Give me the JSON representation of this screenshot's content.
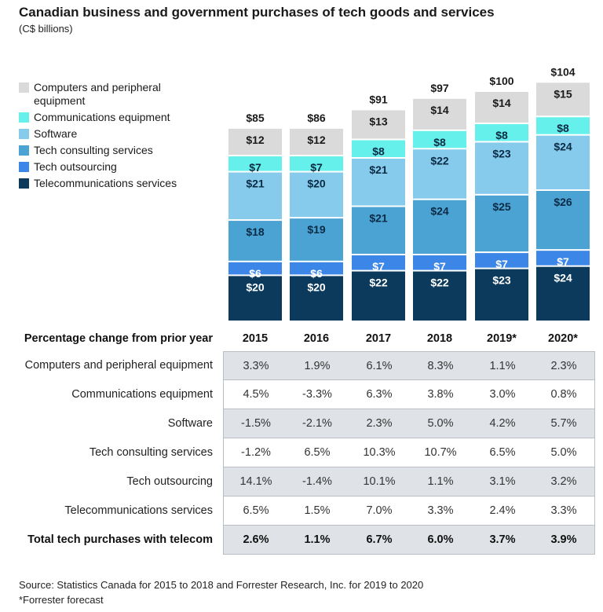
{
  "chart_data": {
    "type": "bar",
    "stacked": true,
    "title": "Canadian business and government purchases of tech goods and services",
    "subtitle": "(C$ billions)",
    "categories": [
      "2015",
      "2016",
      "2017",
      "2018",
      "2019*",
      "2020*"
    ],
    "totals": [
      "$85",
      "$86",
      "$91",
      "$97",
      "$100",
      "$104"
    ],
    "total_values": [
      85,
      86,
      91,
      97,
      100,
      104
    ],
    "series": [
      {
        "name": "Telecommunications services",
        "color": "#0b3a5c",
        "label_color": "#ffffff",
        "values": [
          20,
          20,
          22,
          22,
          23,
          24
        ]
      },
      {
        "name": "Tech outsourcing",
        "color": "#3b86e6",
        "label_color": "#ffffff",
        "values": [
          6,
          6,
          7,
          7,
          7,
          7
        ]
      },
      {
        "name": "Tech consulting services",
        "color": "#4ba3d4",
        "label_color": "#0b2b45",
        "values": [
          18,
          19,
          21,
          24,
          25,
          26
        ]
      },
      {
        "name": "Software",
        "color": "#86cbec",
        "label_color": "#0b2b45",
        "values": [
          21,
          20,
          21,
          22,
          23,
          24
        ]
      },
      {
        "name": "Communications equipment",
        "color": "#66f0ec",
        "label_color": "#0b2b45",
        "values": [
          7,
          7,
          8,
          8,
          8,
          8
        ]
      },
      {
        "name": "Computers and peripheral equipment",
        "color": "#dadada",
        "label_color": "#1a1a1a",
        "values": [
          12,
          12,
          13,
          14,
          14,
          15
        ]
      }
    ],
    "legend_order": [
      "Computers and peripheral equipment",
      "Communications equipment",
      "Software",
      "Tech consulting services",
      "Tech outsourcing",
      "Telecommunications services"
    ],
    "legend_placement": "top-left",
    "value_prefix": "$",
    "grid": false
  },
  "table": {
    "header": "Percentage change from prior year",
    "columns": [
      "2015",
      "2016",
      "2017",
      "2018",
      "2019*",
      "2020*"
    ],
    "rows": [
      {
        "label": "Computers and peripheral equipment",
        "values": [
          "3.3%",
          "1.9%",
          "6.1%",
          "8.3%",
          "1.1%",
          "2.3%"
        ]
      },
      {
        "label": "Communications equipment",
        "values": [
          "4.5%",
          "-3.3%",
          "6.3%",
          "3.8%",
          "3.0%",
          "0.8%"
        ]
      },
      {
        "label": "Software",
        "values": [
          "-1.5%",
          "-2.1%",
          "2.3%",
          "5.0%",
          "4.2%",
          "5.7%"
        ]
      },
      {
        "label": "Tech consulting services",
        "values": [
          "-1.2%",
          "6.5%",
          "10.3%",
          "10.7%",
          "6.5%",
          "5.0%"
        ]
      },
      {
        "label": "Tech outsourcing",
        "values": [
          "14.1%",
          "-1.4%",
          "10.1%",
          "1.1%",
          "3.1%",
          "3.2%"
        ]
      },
      {
        "label": "Telecommunications services",
        "values": [
          "6.5%",
          "1.5%",
          "7.0%",
          "3.3%",
          "2.4%",
          "3.3%"
        ]
      },
      {
        "label": "Total tech purchases with telecom",
        "values": [
          "2.6%",
          "1.1%",
          "6.7%",
          "6.0%",
          "3.7%",
          "3.9%"
        ],
        "bold": true
      }
    ]
  },
  "footer": {
    "source": "Source: Statistics Canada for 2015 to 2018 and Forrester Research, Inc. for 2019 to 2020",
    "note": "*Forrester forecast"
  }
}
